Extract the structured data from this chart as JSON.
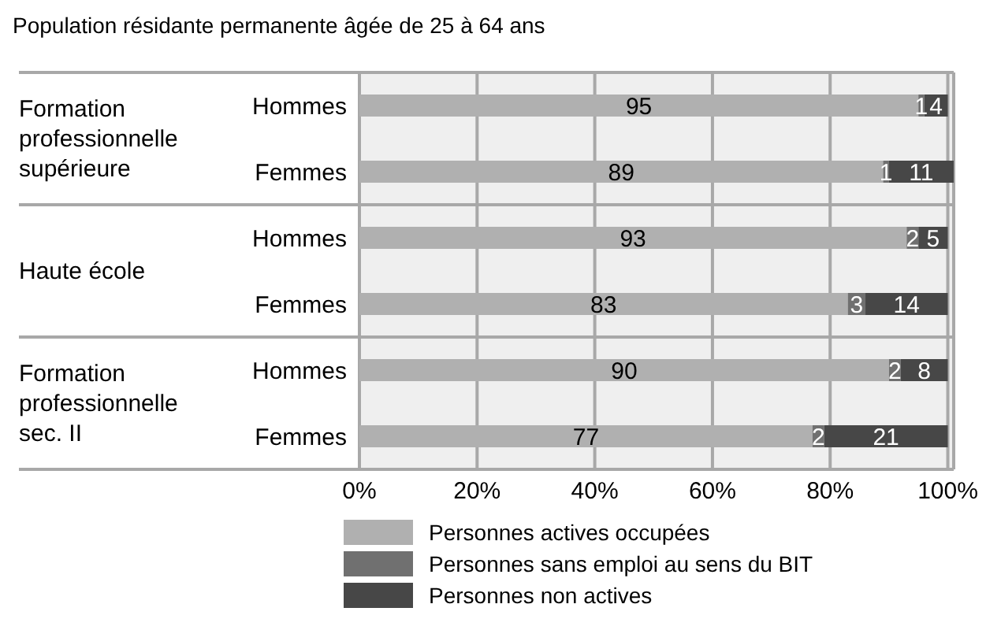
{
  "chart_data": {
    "type": "bar",
    "orientation": "horizontal",
    "stacked": true,
    "title": "Population résidante permanente âgée de 25 à 64 ans",
    "categories": [
      "Hommes",
      "Femmes",
      "Hommes",
      "Femmes",
      "Hommes",
      "Femmes"
    ],
    "annotations": [
      "Formation professionnelle supérieure",
      "Haute école",
      "Formation professionnelle sec. II"
    ],
    "series": [
      {
        "name": "Personnes actives occupées",
        "color": "#b0b0b0",
        "values": [
          95,
          89,
          93,
          83,
          90,
          77
        ]
      },
      {
        "name": "Personnes sans emploi au sens du BIT",
        "color": "#707070",
        "values": [
          1,
          1,
          2,
          3,
          2,
          2
        ]
      },
      {
        "name": "Personnes non actives",
        "color": "#474747",
        "values": [
          4,
          11,
          5,
          14,
          8,
          21
        ]
      }
    ],
    "xlim": [
      0,
      101
    ],
    "xticks": [
      {
        "value": 0,
        "label": "0%"
      },
      {
        "value": 20,
        "label": "20%"
      },
      {
        "value": 40,
        "label": "40%"
      },
      {
        "value": 60,
        "label": "60%"
      },
      {
        "value": 80,
        "label": "80%"
      },
      {
        "value": 100,
        "label": "100%"
      }
    ],
    "grid": "x",
    "legend": "bottom",
    "data_labels": true
  }
}
